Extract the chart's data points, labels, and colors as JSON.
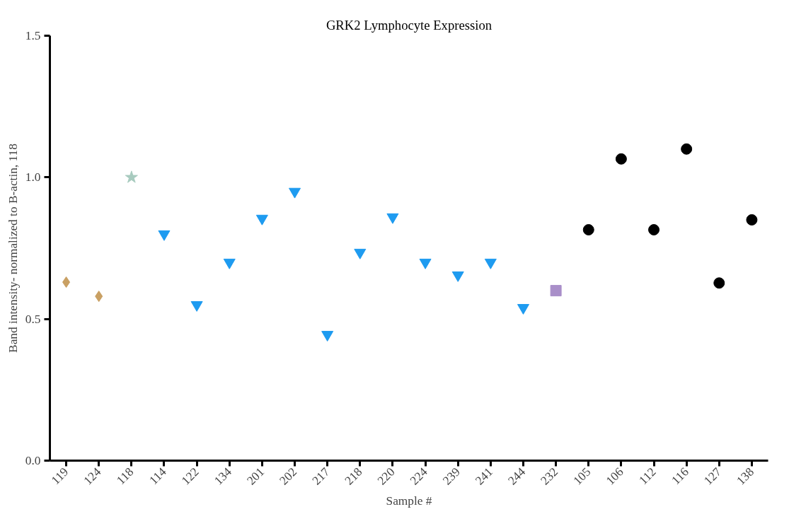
{
  "chart_data": {
    "type": "scatter",
    "title": "GRK2 Lymphocyte Expression",
    "xlabel": "Sample #",
    "ylabel": "Band intensity- normalized to B-actin, 118",
    "categories": [
      "119",
      "124",
      "118",
      "114",
      "122",
      "134",
      "201",
      "202",
      "217",
      "218",
      "220",
      "224",
      "239",
      "241",
      "244",
      "232",
      "105",
      "106",
      "112",
      "116",
      "127",
      "138"
    ],
    "series": [
      {
        "color": "#c9a063",
        "marker": "diamond",
        "values": [
          0.63,
          0.58,
          null,
          null,
          null,
          null,
          null,
          null,
          null,
          null,
          null,
          null,
          null,
          null,
          null,
          null,
          null,
          null,
          null,
          null,
          null,
          null
        ]
      },
      {
        "color": "#a8cbbf",
        "marker": "star",
        "values": [
          null,
          null,
          1.0,
          null,
          null,
          null,
          null,
          null,
          null,
          null,
          null,
          null,
          null,
          null,
          null,
          null,
          null,
          null,
          null,
          null,
          null,
          null
        ]
      },
      {
        "color": "#1e9bf0",
        "marker": "triangle",
        "values": [
          null,
          null,
          null,
          0.8,
          0.55,
          0.7,
          0.855,
          0.95,
          0.445,
          0.735,
          0.86,
          0.7,
          0.655,
          0.7,
          0.54,
          null,
          null,
          null,
          null,
          null,
          null,
          null
        ]
      },
      {
        "color": "#a98fc9",
        "marker": "square",
        "values": [
          null,
          null,
          null,
          null,
          null,
          null,
          null,
          null,
          null,
          null,
          null,
          null,
          null,
          null,
          null,
          0.6,
          null,
          null,
          null,
          null,
          null,
          null
        ]
      },
      {
        "color": "#000000",
        "marker": "circle",
        "values": [
          null,
          null,
          null,
          null,
          null,
          null,
          null,
          null,
          null,
          null,
          null,
          null,
          null,
          null,
          null,
          null,
          0.815,
          1.065,
          0.815,
          1.1,
          0.627,
          0.85
        ]
      }
    ],
    "ylim": [
      0,
      1.5
    ],
    "yticks": [
      {
        "value": 0,
        "label": "0.0"
      },
      {
        "value": 0.5,
        "label": "0.5"
      },
      {
        "value": 1,
        "label": "1.0"
      },
      1.5
    ],
    "grid": false
  }
}
